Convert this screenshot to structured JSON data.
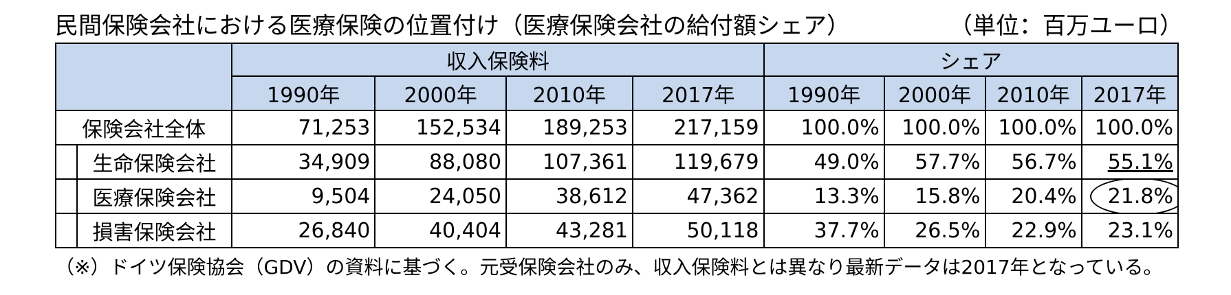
{
  "title": "民間保険会社における医療保険の位置付け（医療保険会社の給付額シェア）",
  "unit": "（単位：百万ユーロ）",
  "groups": {
    "premium": "収入保険料",
    "share": "シェア"
  },
  "years": [
    "1990年",
    "2000年",
    "2010年",
    "2017年"
  ],
  "rows": [
    {
      "label": "保険会社全体",
      "premium": [
        "71,253",
        "152,534",
        "189,253",
        "217,159"
      ],
      "share": [
        "100.0%",
        "100.0%",
        "100.0%",
        "100.0%"
      ]
    },
    {
      "label": "生命保険会社",
      "premium": [
        "34,909",
        "88,080",
        "107,361",
        "119,679"
      ],
      "share": [
        "49.0%",
        "57.7%",
        "56.7%",
        "55.1%"
      ]
    },
    {
      "label": "医療保険会社",
      "premium": [
        "9,504",
        "24,050",
        "38,612",
        "47,362"
      ],
      "share": [
        "13.3%",
        "15.8%",
        "20.4%",
        "21.8%"
      ]
    },
    {
      "label": "損害保険会社",
      "premium": [
        "26,840",
        "40,404",
        "43,281",
        "50,118"
      ],
      "share": [
        "37.7%",
        "26.5%",
        "22.9%",
        "23.1%"
      ]
    }
  ],
  "note": "（※）ドイツ保険協会（GDV）の資料に基づく。元受保険会社のみ、収入保険料とは異なり最新データは2017年となっている。"
}
